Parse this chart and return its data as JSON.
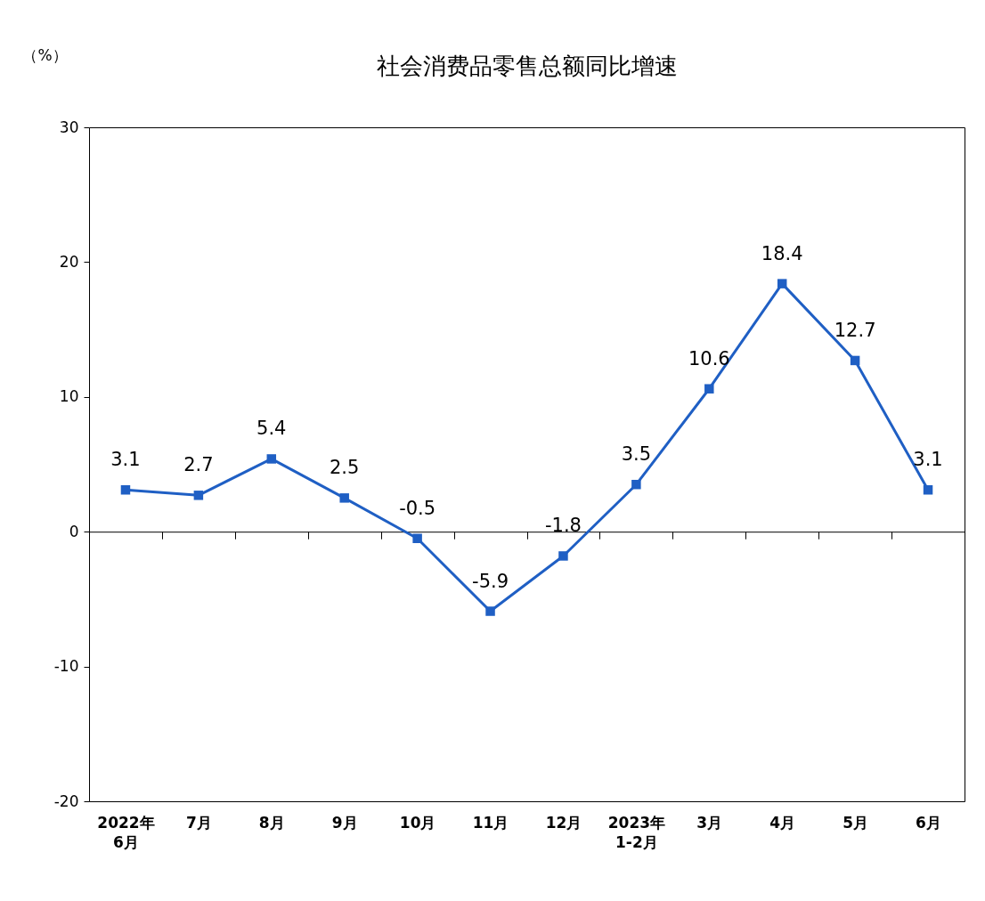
{
  "chart_data": {
    "type": "line",
    "title": "社会消费品零售总额同比增速",
    "ylabel": "（%）",
    "categories": [
      "2022年\n6月",
      "7月",
      "8月",
      "9月",
      "10月",
      "11月",
      "12月",
      "2023年\n1-2月",
      "3月",
      "4月",
      "5月",
      "6月"
    ],
    "values": [
      3.1,
      2.7,
      5.4,
      2.5,
      -0.5,
      -5.9,
      -1.8,
      3.5,
      10.6,
      18.4,
      12.7,
      3.1
    ],
    "color": "#1f5fc4",
    "marker": "square",
    "data_labels": true,
    "ylim": [
      -20,
      30
    ],
    "yticks": [
      -20,
      -10,
      0,
      10,
      20,
      30
    ]
  }
}
